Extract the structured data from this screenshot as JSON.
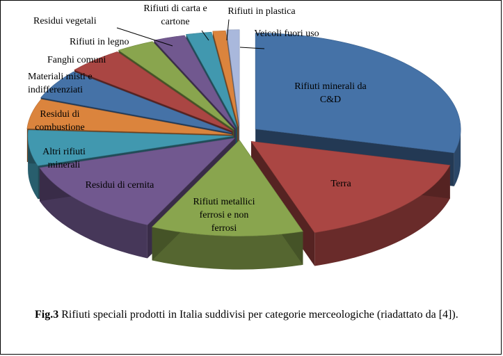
{
  "chart_data": {
    "type": "pie",
    "style": "3d-exploded",
    "categories": [
      "Rifiuti minerali da C&D",
      "Terra",
      "Rifiuti metallici ferrosi e non ferrosi",
      "Residui di cernita",
      "Altri rifiuti minerali",
      "Residui di combustione",
      "Materiali misti e indifferenziati",
      "Fanghi comuni",
      "Rifiuti in legno",
      "Residui vegetali",
      "Rifiuti di carta e cartone",
      "Rifiuti in plastica",
      "Veicoli fuori uso"
    ],
    "values": [
      29,
      16,
      12,
      13,
      6,
      5,
      5,
      4.5,
      3,
      2.5,
      2,
      1,
      1
    ],
    "colors": [
      "#4572A7",
      "#AA4643",
      "#89A54E",
      "#71588F",
      "#4198AF",
      "#DB843D",
      "#4572A7",
      "#AA4643",
      "#89A54E",
      "#71588F",
      "#4198AF",
      "#DB843D",
      "#A9B8DC"
    ],
    "labels": [
      [
        "Rifiuti minerali da",
        "C&D"
      ],
      [
        "Terra"
      ],
      [
        "Rifiuti metallici",
        "ferrosi e non",
        "ferrosi"
      ],
      [
        "Residui di cernita"
      ],
      [
        "Altri rifiuti",
        "minerali"
      ],
      [
        "Residui di",
        "combustione"
      ],
      [
        "Materiali misti e",
        "indifferenziati"
      ],
      [
        "Fanghi comuni"
      ],
      [
        "Rifiuti in legno"
      ],
      [
        "Residui vegetali"
      ],
      [
        "Rifiuti di carta e",
        "cartone"
      ],
      [
        "Rifiuti in plastica"
      ],
      [
        "Veicoli fuori uso"
      ]
    ],
    "title": "",
    "legend": "none"
  },
  "caption": {
    "fig": "Fig.3",
    "text": " Rifiuti speciali prodotti in Italia suddivisi per categorie merceologiche (riadattato da [4])."
  }
}
